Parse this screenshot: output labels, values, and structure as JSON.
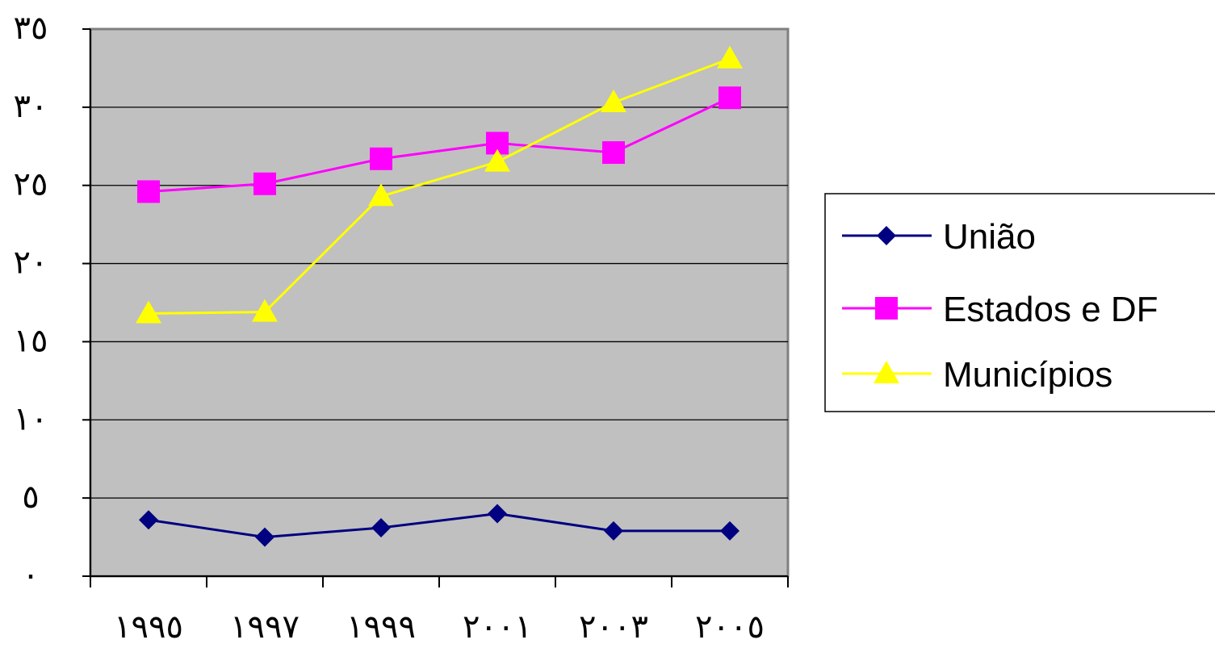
{
  "chart_data": {
    "type": "line",
    "categories": [
      "١٩٩٥",
      "١٩٩٧",
      "١٩٩٩",
      "٢٠٠١",
      "٢٠٠٣",
      "٢٠٠٥"
    ],
    "series": [
      {
        "name": "União",
        "values": [
          3.6,
          2.5,
          3.1,
          4.0,
          2.9,
          2.9
        ],
        "color": "#000080",
        "marker": "diamond"
      },
      {
        "name": "Estados e DF",
        "values": [
          24.6,
          25.1,
          26.7,
          27.7,
          27.1,
          30.6
        ],
        "color": "#ff00ff",
        "marker": "square"
      },
      {
        "name": "Municípios",
        "values": [
          16.8,
          16.9,
          24.3,
          26.5,
          30.3,
          33.1
        ],
        "color": "#ffff00",
        "marker": "triangle"
      }
    ],
    "y_ticks": [
      "٠",
      "٥",
      "١٠",
      "١٥",
      "٢٠",
      "٢٥",
      "٣٠",
      "٣٥"
    ],
    "ylim": [
      0,
      35
    ],
    "grid": true,
    "plot_background": "#c0c0c0",
    "legend_position": "right"
  }
}
